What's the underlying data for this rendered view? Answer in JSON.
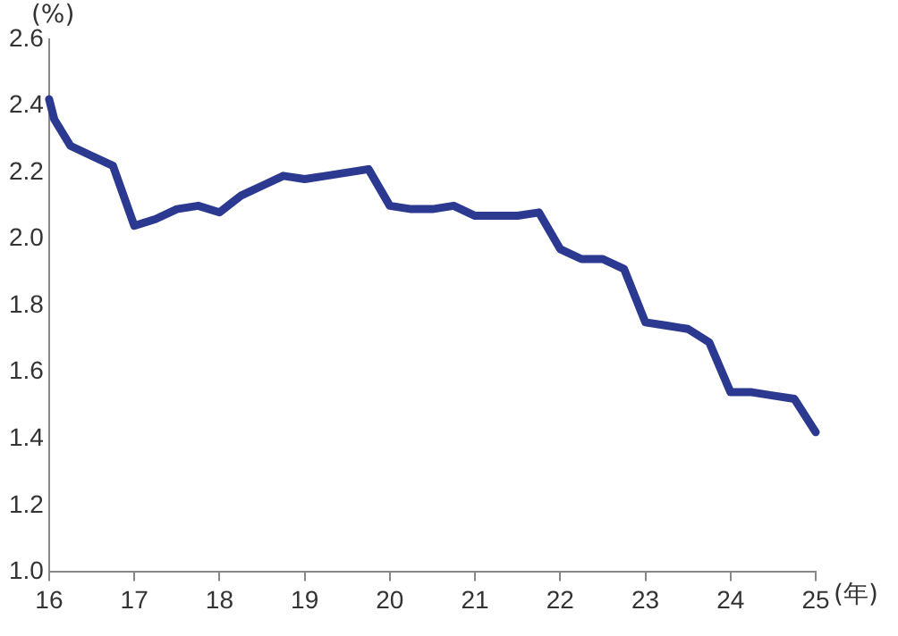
{
  "chart_data": {
    "type": "line",
    "ylabel": "(%)",
    "xlabel": "(年)",
    "x": [
      16,
      16.06,
      16.25,
      16.5,
      16.75,
      17,
      17.25,
      17.5,
      17.75,
      18,
      18.25,
      18.5,
      18.75,
      19,
      19.25,
      19.5,
      19.75,
      20,
      20.25,
      20.5,
      20.75,
      21,
      21.25,
      21.5,
      21.75,
      22,
      22.25,
      22.5,
      22.75,
      23,
      23.25,
      23.5,
      23.75,
      24,
      24.25,
      24.5,
      24.75,
      25
    ],
    "series": [
      {
        "color": "#2b3990",
        "values": [
          2.42,
          2.36,
          2.28,
          2.25,
          2.22,
          2.04,
          2.06,
          2.09,
          2.1,
          2.08,
          2.13,
          2.16,
          2.19,
          2.18,
          2.19,
          2.2,
          2.21,
          2.1,
          2.09,
          2.09,
          2.1,
          2.07,
          2.07,
          2.07,
          2.08,
          1.97,
          1.94,
          1.94,
          1.91,
          1.75,
          1.74,
          1.73,
          1.69,
          1.54,
          1.54,
          1.53,
          1.52,
          1.42
        ]
      }
    ],
    "xlim": [
      16,
      25
    ],
    "xticks": [
      16,
      17,
      18,
      19,
      20,
      21,
      22,
      23,
      24,
      25
    ],
    "ylim": [
      1,
      2.6
    ],
    "yticks": [
      {
        "value": 1,
        "label": "1.0"
      },
      1.2,
      1.4,
      1.6,
      1.8,
      {
        "value": 2,
        "label": "2.0"
      },
      2.2,
      2.4,
      2.6
    ],
    "grid": false,
    "legend": false,
    "marker": "none",
    "line_style": "solid"
  }
}
